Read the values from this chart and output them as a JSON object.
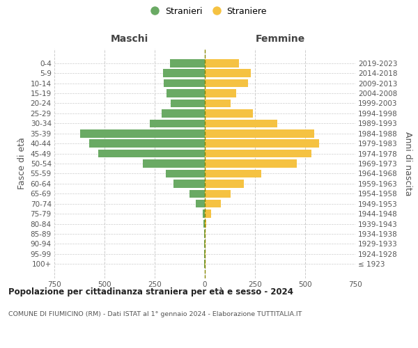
{
  "age_groups": [
    "100+",
    "95-99",
    "90-94",
    "85-89",
    "80-84",
    "75-79",
    "70-74",
    "65-69",
    "60-64",
    "55-59",
    "50-54",
    "45-49",
    "40-44",
    "35-39",
    "30-34",
    "25-29",
    "20-24",
    "15-19",
    "10-14",
    "5-9",
    "0-4"
  ],
  "birth_years": [
    "≤ 1923",
    "1924-1928",
    "1929-1933",
    "1934-1938",
    "1939-1943",
    "1944-1948",
    "1949-1953",
    "1954-1958",
    "1959-1963",
    "1964-1968",
    "1969-1973",
    "1974-1978",
    "1979-1983",
    "1984-1988",
    "1989-1993",
    "1994-1998",
    "1999-2003",
    "2004-2008",
    "2009-2013",
    "2014-2018",
    "2019-2023"
  ],
  "males": [
    2,
    2,
    2,
    3,
    8,
    12,
    45,
    75,
    155,
    195,
    310,
    530,
    575,
    620,
    275,
    215,
    170,
    190,
    205,
    210,
    175
  ],
  "females": [
    2,
    2,
    2,
    4,
    8,
    30,
    80,
    130,
    195,
    280,
    460,
    530,
    570,
    545,
    360,
    240,
    130,
    155,
    215,
    230,
    170
  ],
  "male_color": "#6aaa64",
  "female_color": "#f5c242",
  "title": "Popolazione per cittadinanza straniera per età e sesso - 2024",
  "subtitle": "COMUNE DI FIUMICINO (RM) - Dati ISTAT al 1° gennaio 2024 - Elaborazione TUTTITALIA.IT",
  "ylabel_left": "Fasce di età",
  "ylabel_right": "Anni di nascita",
  "legend_male": "Stranieri",
  "legend_female": "Straniere",
  "header_left": "Maschi",
  "header_right": "Femmine",
  "xlim": 750,
  "background_color": "#ffffff",
  "bar_height": 0.8,
  "grid_color": "#cccccc"
}
